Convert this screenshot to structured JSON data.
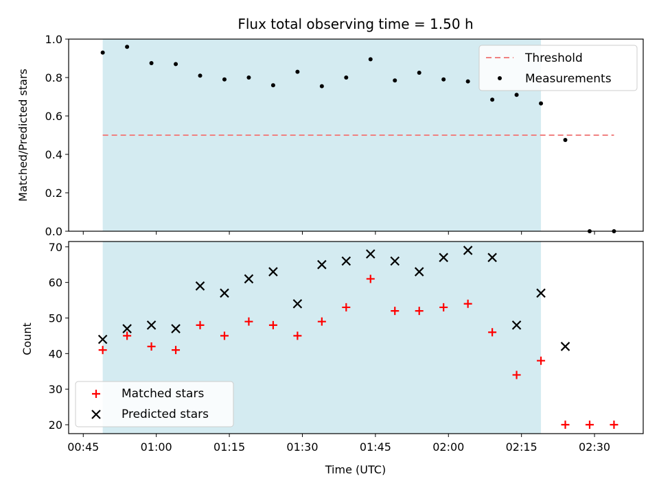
{
  "chart_data": [
    {
      "type": "scatter",
      "title": "Flux total observing time = 1.50 h",
      "ylabel": "Matched/Predicted stars",
      "xlabel": "",
      "ylim": [
        0,
        1
      ],
      "xlim": [
        "00:42",
        "02:40"
      ],
      "yticks": [
        "0.0",
        "0.2",
        "0.4",
        "0.6",
        "0.8",
        "1.0"
      ],
      "ytick_values": [
        0,
        0.2,
        0.4,
        0.6,
        0.8,
        1.0
      ],
      "shaded_span": [
        "00:49",
        "02:19"
      ],
      "shaded_color": "#d4ebf1",
      "threshold": {
        "name": "Threshold",
        "value": 0.5,
        "x_range": [
          "00:49",
          "02:34"
        ],
        "color": "#f08080"
      },
      "series": [
        {
          "name": "Measurements",
          "color": "#000000",
          "marker": "dot",
          "x": [
            "00:49",
            "00:54",
            "00:59",
            "01:04",
            "01:09",
            "01:14",
            "01:19",
            "01:24",
            "01:29",
            "01:34",
            "01:39",
            "01:44",
            "01:49",
            "01:54",
            "01:59",
            "02:04",
            "02:09",
            "02:14",
            "02:19",
            "02:24",
            "02:29",
            "02:34"
          ],
          "y": [
            0.93,
            0.96,
            0.875,
            0.87,
            0.81,
            0.79,
            0.8,
            0.76,
            0.83,
            0.755,
            0.8,
            0.895,
            0.785,
            0.825,
            0.79,
            0.78,
            0.685,
            0.71,
            0.665,
            0.475,
            0.0,
            0.0
          ]
        }
      ],
      "legend_position": "top-right",
      "legend_order": [
        "Threshold",
        "Measurements"
      ]
    },
    {
      "type": "scatter",
      "title": "",
      "ylabel": "Count",
      "xlabel": "Time (UTC)",
      "ylim": [
        17.5,
        71.5
      ],
      "yticks": [
        "20",
        "30",
        "40",
        "50",
        "60",
        "70"
      ],
      "ytick_values": [
        20,
        30,
        40,
        50,
        60,
        70
      ],
      "xticks": [
        "00:45",
        "01:00",
        "01:15",
        "01:30",
        "01:45",
        "02:00",
        "02:15",
        "02:30"
      ],
      "shaded_span": [
        "00:49",
        "02:19"
      ],
      "series": [
        {
          "name": "Matched stars",
          "color": "#ff0000",
          "marker": "plus",
          "x": [
            "00:49",
            "00:54",
            "00:59",
            "01:04",
            "01:09",
            "01:14",
            "01:19",
            "01:24",
            "01:29",
            "01:34",
            "01:39",
            "01:44",
            "01:49",
            "01:54",
            "01:59",
            "02:04",
            "02:09",
            "02:14",
            "02:19",
            "02:24",
            "02:29",
            "02:34"
          ],
          "y": [
            41,
            45,
            42,
            41,
            48,
            45,
            49,
            48,
            45,
            49,
            53,
            61,
            52,
            52,
            53,
            54,
            46,
            34,
            38,
            20,
            20,
            20
          ]
        },
        {
          "name": "Predicted stars",
          "color": "#000000",
          "marker": "x",
          "x": [
            "00:49",
            "00:54",
            "00:59",
            "01:04",
            "01:09",
            "01:14",
            "01:19",
            "01:24",
            "01:29",
            "01:34",
            "01:39",
            "01:44",
            "01:49",
            "01:54",
            "01:59",
            "02:04",
            "02:09",
            "02:14",
            "02:19",
            "02:24"
          ],
          "y": [
            44,
            47,
            48,
            47,
            59,
            57,
            61,
            63,
            54,
            65,
            66,
            68,
            66,
            63,
            67,
            69,
            67,
            48,
            57,
            42
          ]
        }
      ],
      "legend_position": "bottom-left"
    }
  ]
}
